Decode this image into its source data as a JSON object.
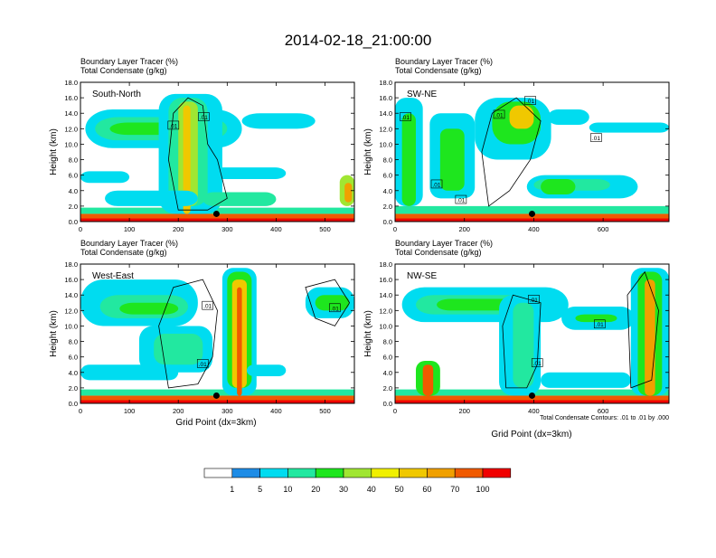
{
  "main_title": "2014-02-18_21:00:00",
  "panel_header": {
    "line1": "Boundary Layer Tracer    (%)",
    "line2": "Total Condensate   (g/kg)"
  },
  "ylabel": "Height (km)",
  "xlabel": "Grid Point (dx=3km)",
  "contour_note": "Total Condensate Contours: .01 to .01 by .000",
  "contour_label": ".01",
  "colors": {
    "c0": "#ffffff",
    "c1": "#1e8ce6",
    "c2": "#00dcf0",
    "c3": "#22e8a0",
    "c4": "#1ee61e",
    "c5": "#a0e632",
    "c6": "#f0f000",
    "c7": "#f0c800",
    "c8": "#f0a000",
    "c9": "#f05a00",
    "c10": "#f00000"
  },
  "colorbar": {
    "labels": [
      "1",
      "5",
      "10",
      "20",
      "30",
      "40",
      "50",
      "60",
      "70",
      "100"
    ]
  },
  "chart_data": [
    {
      "type": "heatmap",
      "title": "South-North",
      "xlim": [
        0,
        560
      ],
      "ylim": [
        0,
        18
      ],
      "x_ticks": [
        0,
        100,
        200,
        300,
        400,
        500
      ],
      "y_ticks": [
        "0.0",
        "2.0",
        "4.0",
        "6.0",
        "8.0",
        "10.0",
        "12.0",
        "14.0",
        "16.0",
        "18.0"
      ],
      "marker": {
        "x": 278,
        "y": 1.0
      }
    },
    {
      "type": "heatmap",
      "title": "SW-NE",
      "xlim": [
        0,
        790
      ],
      "ylim": [
        0,
        18
      ],
      "x_ticks": [
        0,
        200,
        400,
        600
      ],
      "y_ticks": [
        "0.0",
        "2.0",
        "4.0",
        "6.0",
        "8.0",
        "10.0",
        "12.0",
        "14.0",
        "16.0",
        "18.0"
      ],
      "marker": {
        "x": 395,
        "y": 1.0
      }
    },
    {
      "type": "heatmap",
      "title": "West-East",
      "xlim": [
        0,
        560
      ],
      "ylim": [
        0,
        18
      ],
      "x_ticks": [
        0,
        100,
        200,
        300,
        400,
        500
      ],
      "y_ticks": [
        "0.0",
        "2.0",
        "4.0",
        "6.0",
        "8.0",
        "10.0",
        "12.0",
        "14.0",
        "16.0",
        "18.0"
      ],
      "marker": {
        "x": 278,
        "y": 1.0
      }
    },
    {
      "type": "heatmap",
      "title": "NW-SE",
      "xlim": [
        0,
        790
      ],
      "ylim": [
        0,
        18
      ],
      "x_ticks": [
        0,
        200,
        400,
        600
      ],
      "y_ticks": [
        "0.0",
        "2.0",
        "4.0",
        "6.0",
        "8.0",
        "10.0",
        "12.0",
        "14.0",
        "16.0",
        "18.0"
      ],
      "marker": {
        "x": 395,
        "y": 1.0
      }
    }
  ]
}
